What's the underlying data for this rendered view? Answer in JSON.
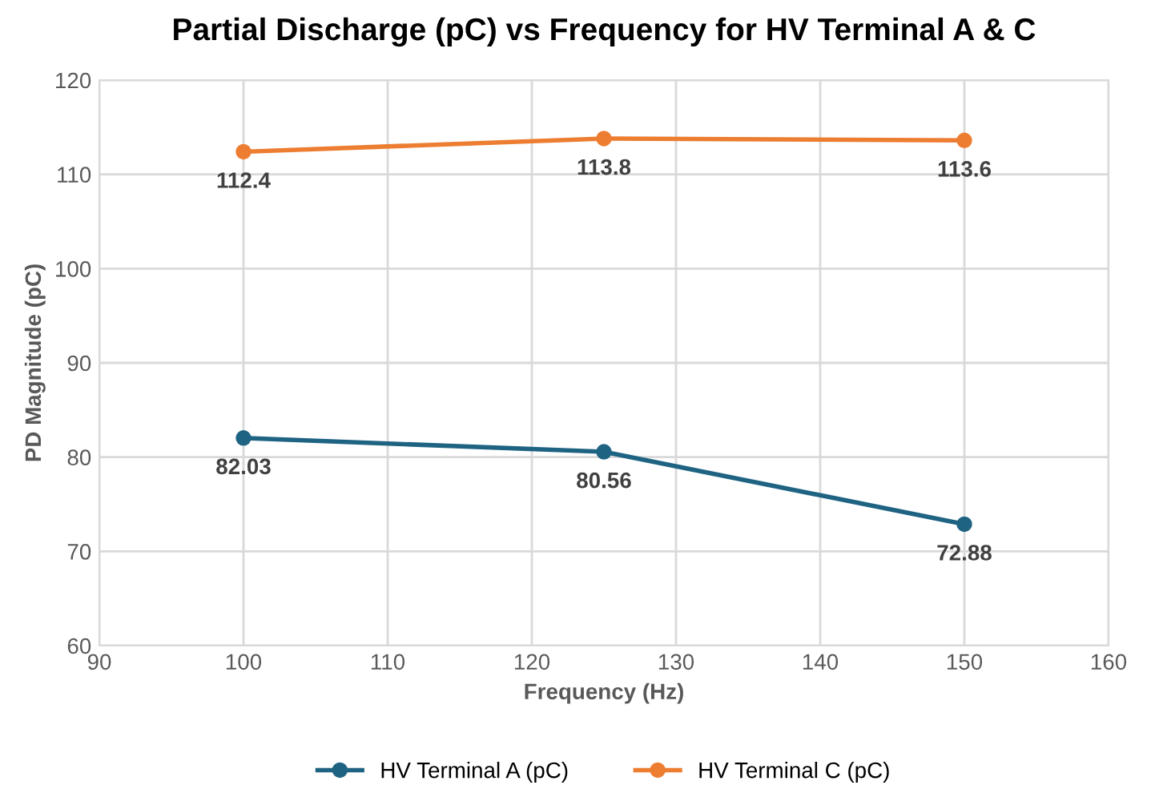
{
  "chart_data": {
    "type": "line",
    "title": "Partial Discharge (pC) vs Frequency for HV Terminal A & C",
    "xlabel": "Frequency (Hz)",
    "ylabel": "PD Magnitude (pC)",
    "x": [
      100,
      125,
      150
    ],
    "series": [
      {
        "name": "HV Terminal A (pC)",
        "color": "#1f6383",
        "values": [
          82.03,
          80.56,
          72.88
        ]
      },
      {
        "name": "HV Terminal C (pC)",
        "color": "#ed7d31",
        "values": [
          112.4,
          113.8,
          113.6
        ]
      }
    ],
    "xlim": [
      90,
      160
    ],
    "xticks": [
      90,
      100,
      110,
      120,
      130,
      140,
      150,
      160
    ],
    "ylim": [
      60,
      120
    ],
    "yticks": [
      60,
      70,
      80,
      90,
      100,
      110,
      120
    ],
    "grid": true,
    "legend": "bottom",
    "marker": "circle",
    "line_style": "solid",
    "data_labels": true
  }
}
